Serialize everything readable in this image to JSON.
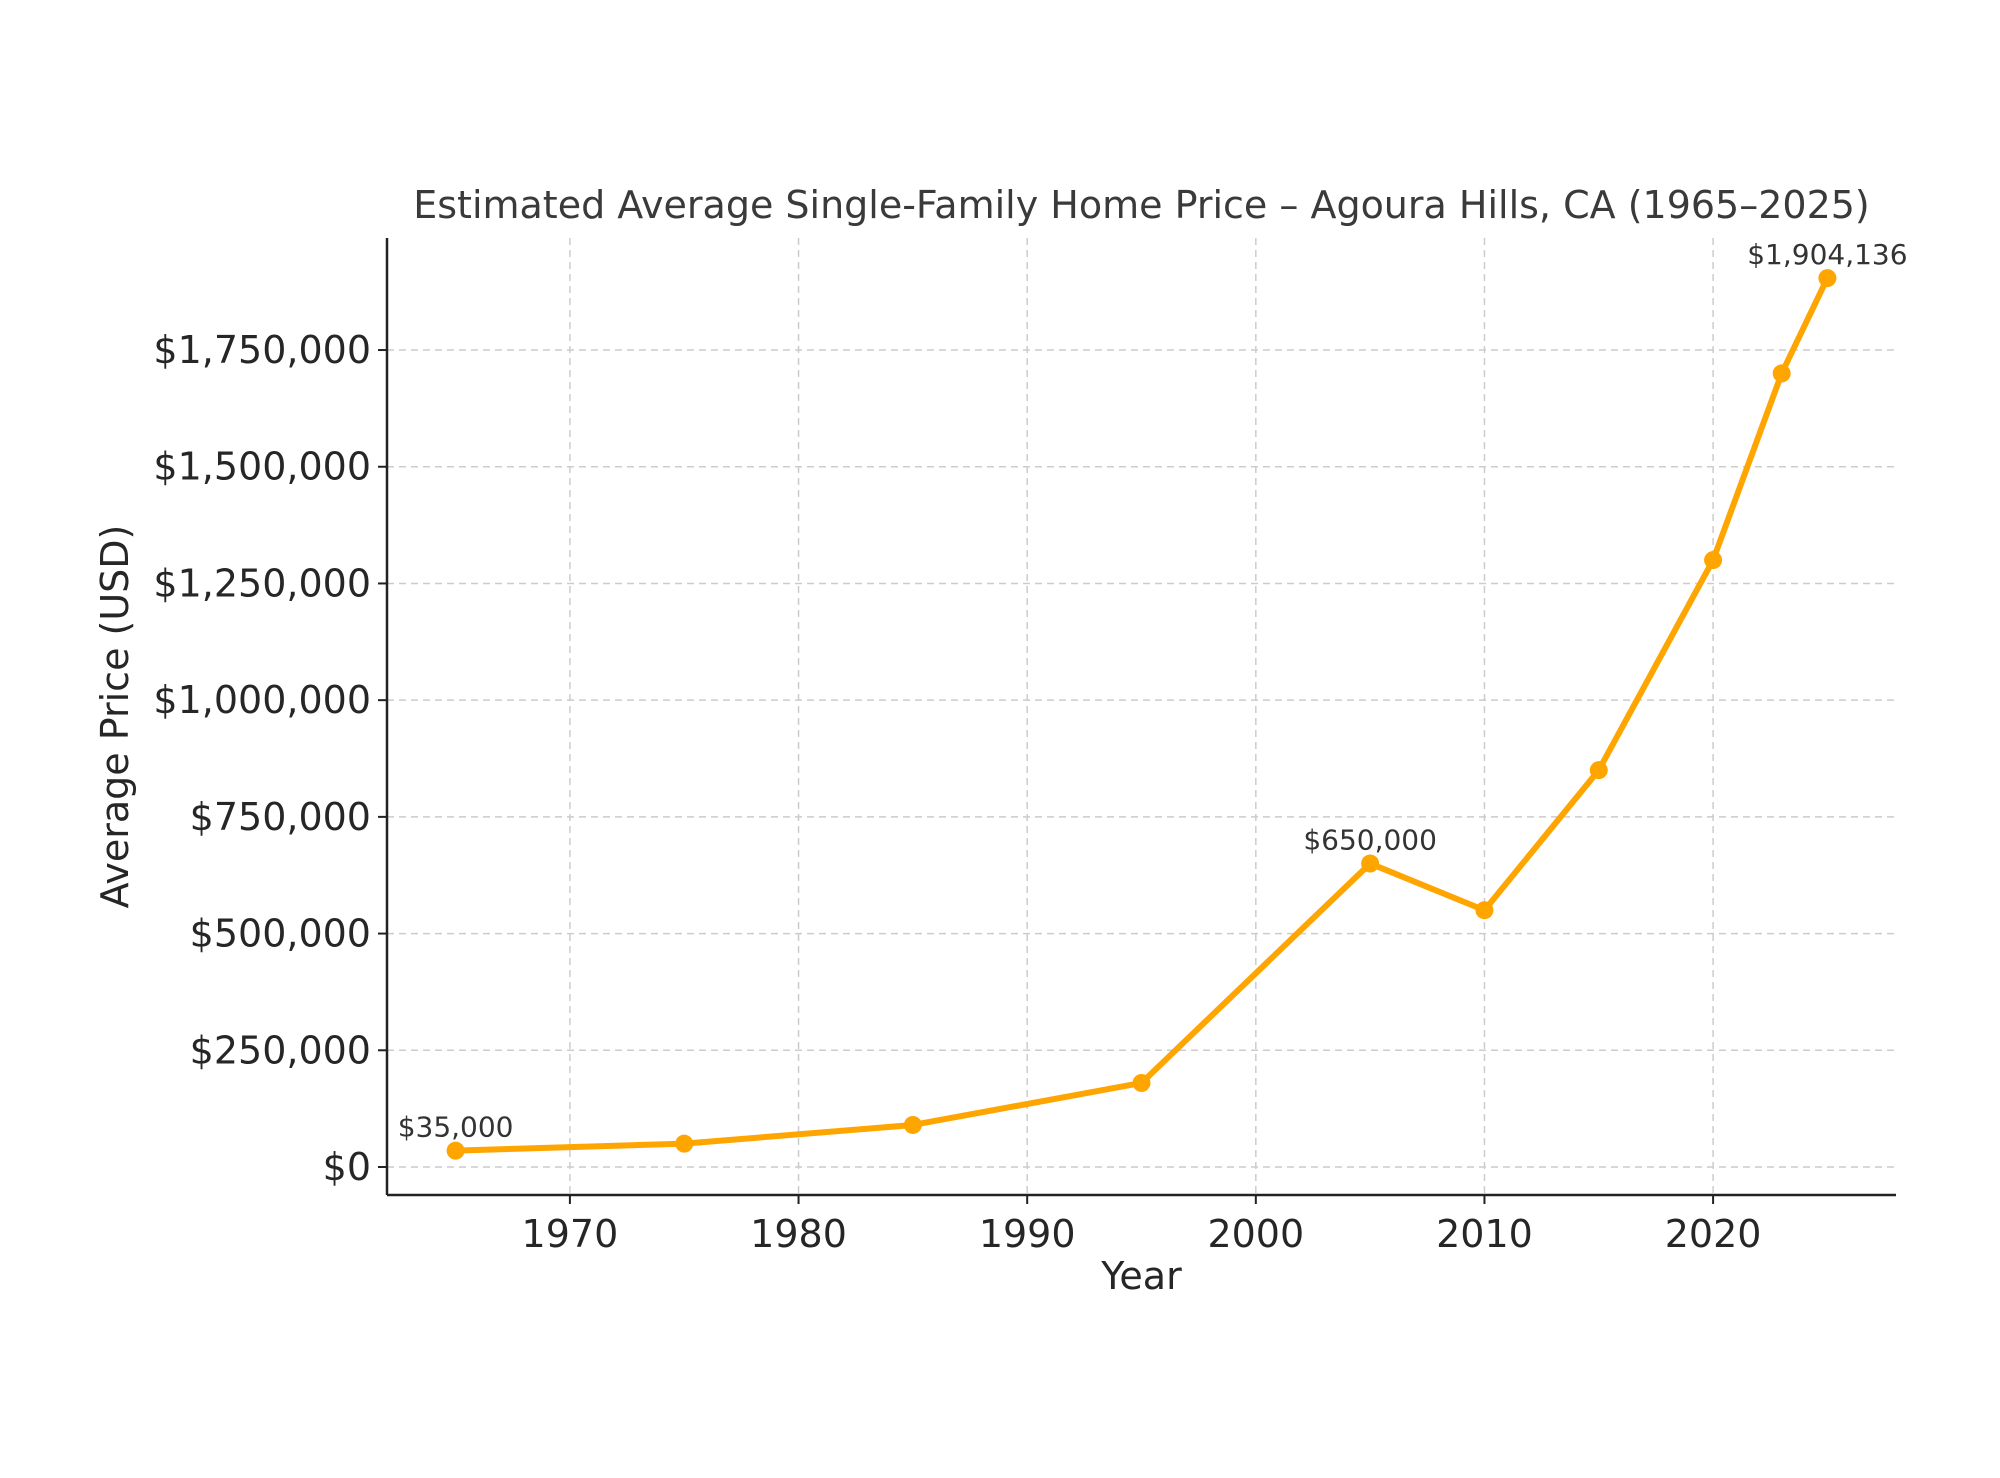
{
  "chart_data": {
    "type": "line",
    "title": "Estimated Average Single-Family Home Price – Agoura Hills, CA (1965–2025)",
    "xlabel": "Year",
    "ylabel": "Average Price (USD)",
    "xlim": [
      1962,
      2028
    ],
    "ylim": [
      -60000,
      1990000
    ],
    "x_ticks": [
      1970,
      1980,
      1990,
      2000,
      2010,
      2020
    ],
    "x_tick_labels": [
      "1970",
      "1980",
      "1990",
      "2000",
      "2010",
      "2020"
    ],
    "y_ticks": [
      0,
      250000,
      500000,
      750000,
      1000000,
      1250000,
      1500000,
      1750000
    ],
    "y_tick_labels": [
      "$0",
      "$250,000",
      "$500,000",
      "$750,000",
      "$1,000,000",
      "$1,250,000",
      "$1,500,000",
      "$1,750,000"
    ],
    "grid": true,
    "series": [
      {
        "name": "Average Price",
        "color": "#ffa500",
        "x": [
          1965,
          1975,
          1985,
          1995,
          2005,
          2010,
          2015,
          2020,
          2023,
          2025
        ],
        "values": [
          35000,
          50000,
          90000,
          180000,
          650000,
          550000,
          850000,
          1300000,
          1700000,
          1904136
        ]
      }
    ],
    "annotations": [
      {
        "x": 1965,
        "y": 35000,
        "text": "$35,000"
      },
      {
        "x": 2005,
        "y": 650000,
        "text": "$650,000"
      },
      {
        "x": 2025,
        "y": 1904136,
        "text": "$1,904,136"
      }
    ]
  }
}
